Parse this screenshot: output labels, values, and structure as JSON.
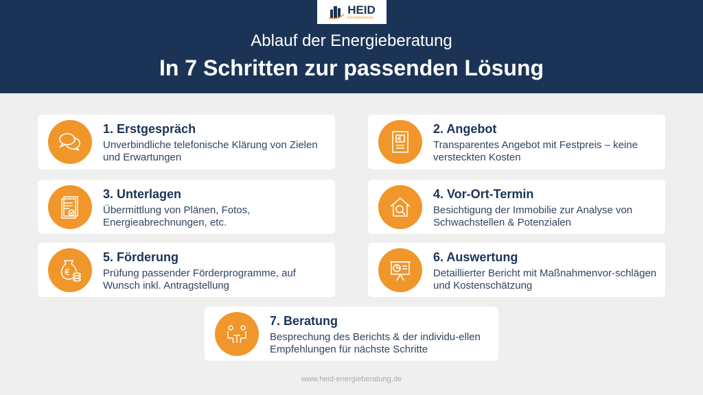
{
  "logo": {
    "name": "HEID",
    "tagline": "Energieberatung"
  },
  "header": {
    "subtitle": "Ablauf der Energieberatung",
    "title": "In 7 Schritten zur passenden Lösung"
  },
  "steps": [
    {
      "title": "1. Erstgespräch",
      "desc": "Unverbindliche telefonische Klärung von Zielen und Erwartungen",
      "icon": "chat-bubbles-icon"
    },
    {
      "title": "2. Angebot",
      "desc": "Transparentes Angebot mit Festpreis – keine versteckten Kosten",
      "icon": "euro-document-icon"
    },
    {
      "title": "3. Unterlagen",
      "desc": "Übermittlung von Plänen, Fotos, Energieabrechnungen, etc.",
      "icon": "documents-icon"
    },
    {
      "title": "4. Vor-Ort-Termin",
      "desc": "Besichtigung der Immobilie zur Analyse von Schwachstellen & Potenzialen",
      "icon": "house-search-icon"
    },
    {
      "title": "5. Förderung",
      "desc": "Prüfung passender Förderprogramme, auf Wunsch inkl. Antragstellung",
      "icon": "money-bag-icon"
    },
    {
      "title": "6. Auswertung",
      "desc": "Detaillierter Bericht mit Maßnahmenvor-schlägen und Kostenschätzung",
      "icon": "presentation-chart-icon"
    },
    {
      "title": "7. Beratung",
      "desc": "Besprechung des Berichts & der individu-ellen Empfehlungen für nächste Schritte",
      "icon": "consultation-icon"
    }
  ],
  "footer": "www.heid-energieberatung.de",
  "colors": {
    "navy": "#1b3456",
    "orange": "#f0962b",
    "background": "#efefef"
  }
}
